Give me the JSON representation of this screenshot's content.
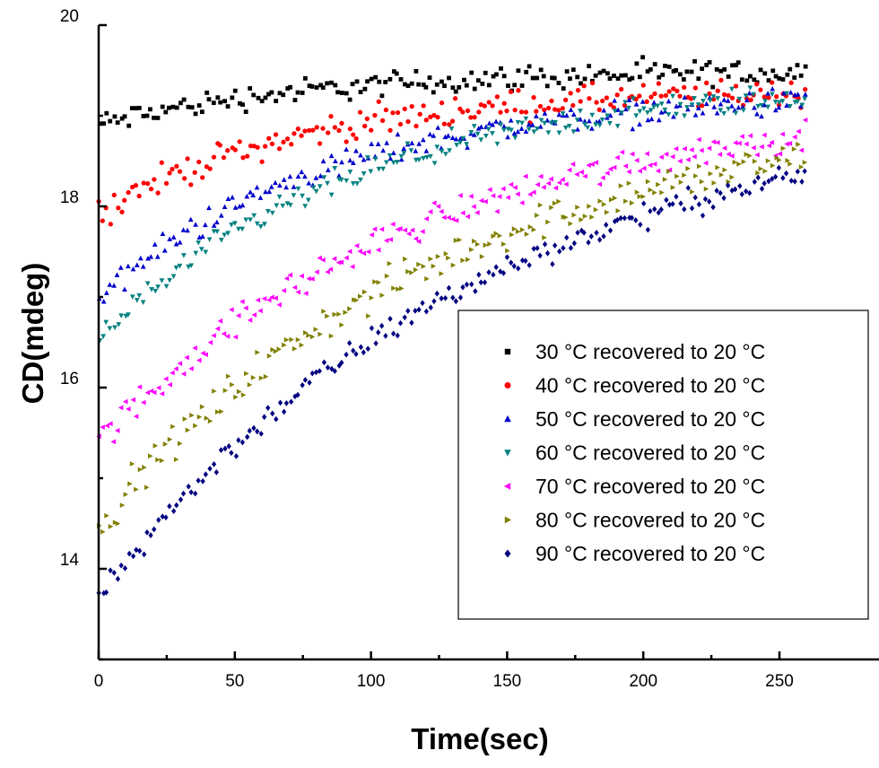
{
  "chart_data": {
    "type": "scatter",
    "title": "",
    "xlabel": "Time(sec)",
    "ylabel": "CD(mdeg)",
    "xlim": [
      0,
      260
    ],
    "ylim": [
      13,
      20
    ],
    "x_ticks": [
      0,
      50,
      100,
      150,
      200,
      250
    ],
    "y_ticks": [
      14,
      16,
      18,
      20
    ],
    "grid": false,
    "legend_position": "center-right",
    "series": [
      {
        "name": "30 °C recovered to 20 °C",
        "marker": "square",
        "color": "#000000",
        "start": 18.9,
        "end": 19.5,
        "rate": 0.013,
        "noise": 0.12
      },
      {
        "name": "40 °C recovered to 20 °C",
        "marker": "circle",
        "color": "#ff0000",
        "start": 17.95,
        "end": 19.3,
        "rate": 0.013,
        "noise": 0.14
      },
      {
        "name": "50 °C recovered to 20 °C",
        "marker": "triangle-up",
        "color": "#0000cc",
        "start": 17.0,
        "end": 19.25,
        "rate": 0.012,
        "noise": 0.13
      },
      {
        "name": "60 °C recovered to 20 °C",
        "marker": "triangle-down",
        "color": "#008080",
        "start": 16.55,
        "end": 19.4,
        "rate": 0.0105,
        "noise": 0.13
      },
      {
        "name": "70 °C recovered to 20 °C",
        "marker": "triangle-left",
        "color": "#ff00ff",
        "start": 15.4,
        "end": 19.2,
        "rate": 0.0085,
        "noise": 0.15
      },
      {
        "name": "80 °C recovered to 20 °C",
        "marker": "triangle-right",
        "color": "#808000",
        "start": 14.5,
        "end": 19.15,
        "rate": 0.0078,
        "noise": 0.17
      },
      {
        "name": "90 °C recovered to 20 °C",
        "marker": "diamond",
        "color": "#000080",
        "start": 13.7,
        "end": 19.2,
        "rate": 0.0072,
        "noise": 0.12
      }
    ]
  }
}
